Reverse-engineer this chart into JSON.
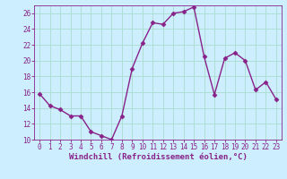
{
  "x": [
    0,
    1,
    2,
    3,
    4,
    5,
    6,
    7,
    8,
    9,
    10,
    11,
    12,
    13,
    14,
    15,
    16,
    17,
    18,
    19,
    20,
    21,
    22,
    23
  ],
  "y": [
    15.8,
    14.3,
    13.8,
    13.0,
    13.0,
    11.0,
    10.5,
    10.0,
    13.0,
    19.0,
    22.2,
    24.8,
    24.6,
    26.0,
    26.2,
    26.8,
    20.5,
    15.7,
    20.3,
    21.0,
    20.0,
    16.3,
    17.3,
    15.1
  ],
  "line_color": "#882288",
  "marker": "D",
  "marker_size": 2.5,
  "linewidth": 1.0,
  "bg_color": "#cceeff",
  "grid_color": "#aaddcc",
  "xlabel": "Windchill (Refroidissement éolien,°C)",
  "ylim": [
    10,
    27
  ],
  "xlim": [
    -0.5,
    23.5
  ],
  "yticks": [
    10,
    12,
    14,
    16,
    18,
    20,
    22,
    24,
    26
  ],
  "xticks": [
    0,
    1,
    2,
    3,
    4,
    5,
    6,
    7,
    8,
    9,
    10,
    11,
    12,
    13,
    14,
    15,
    16,
    17,
    18,
    19,
    20,
    21,
    22,
    23
  ],
  "tick_fontsize": 5.5,
  "xlabel_fontsize": 6.5
}
